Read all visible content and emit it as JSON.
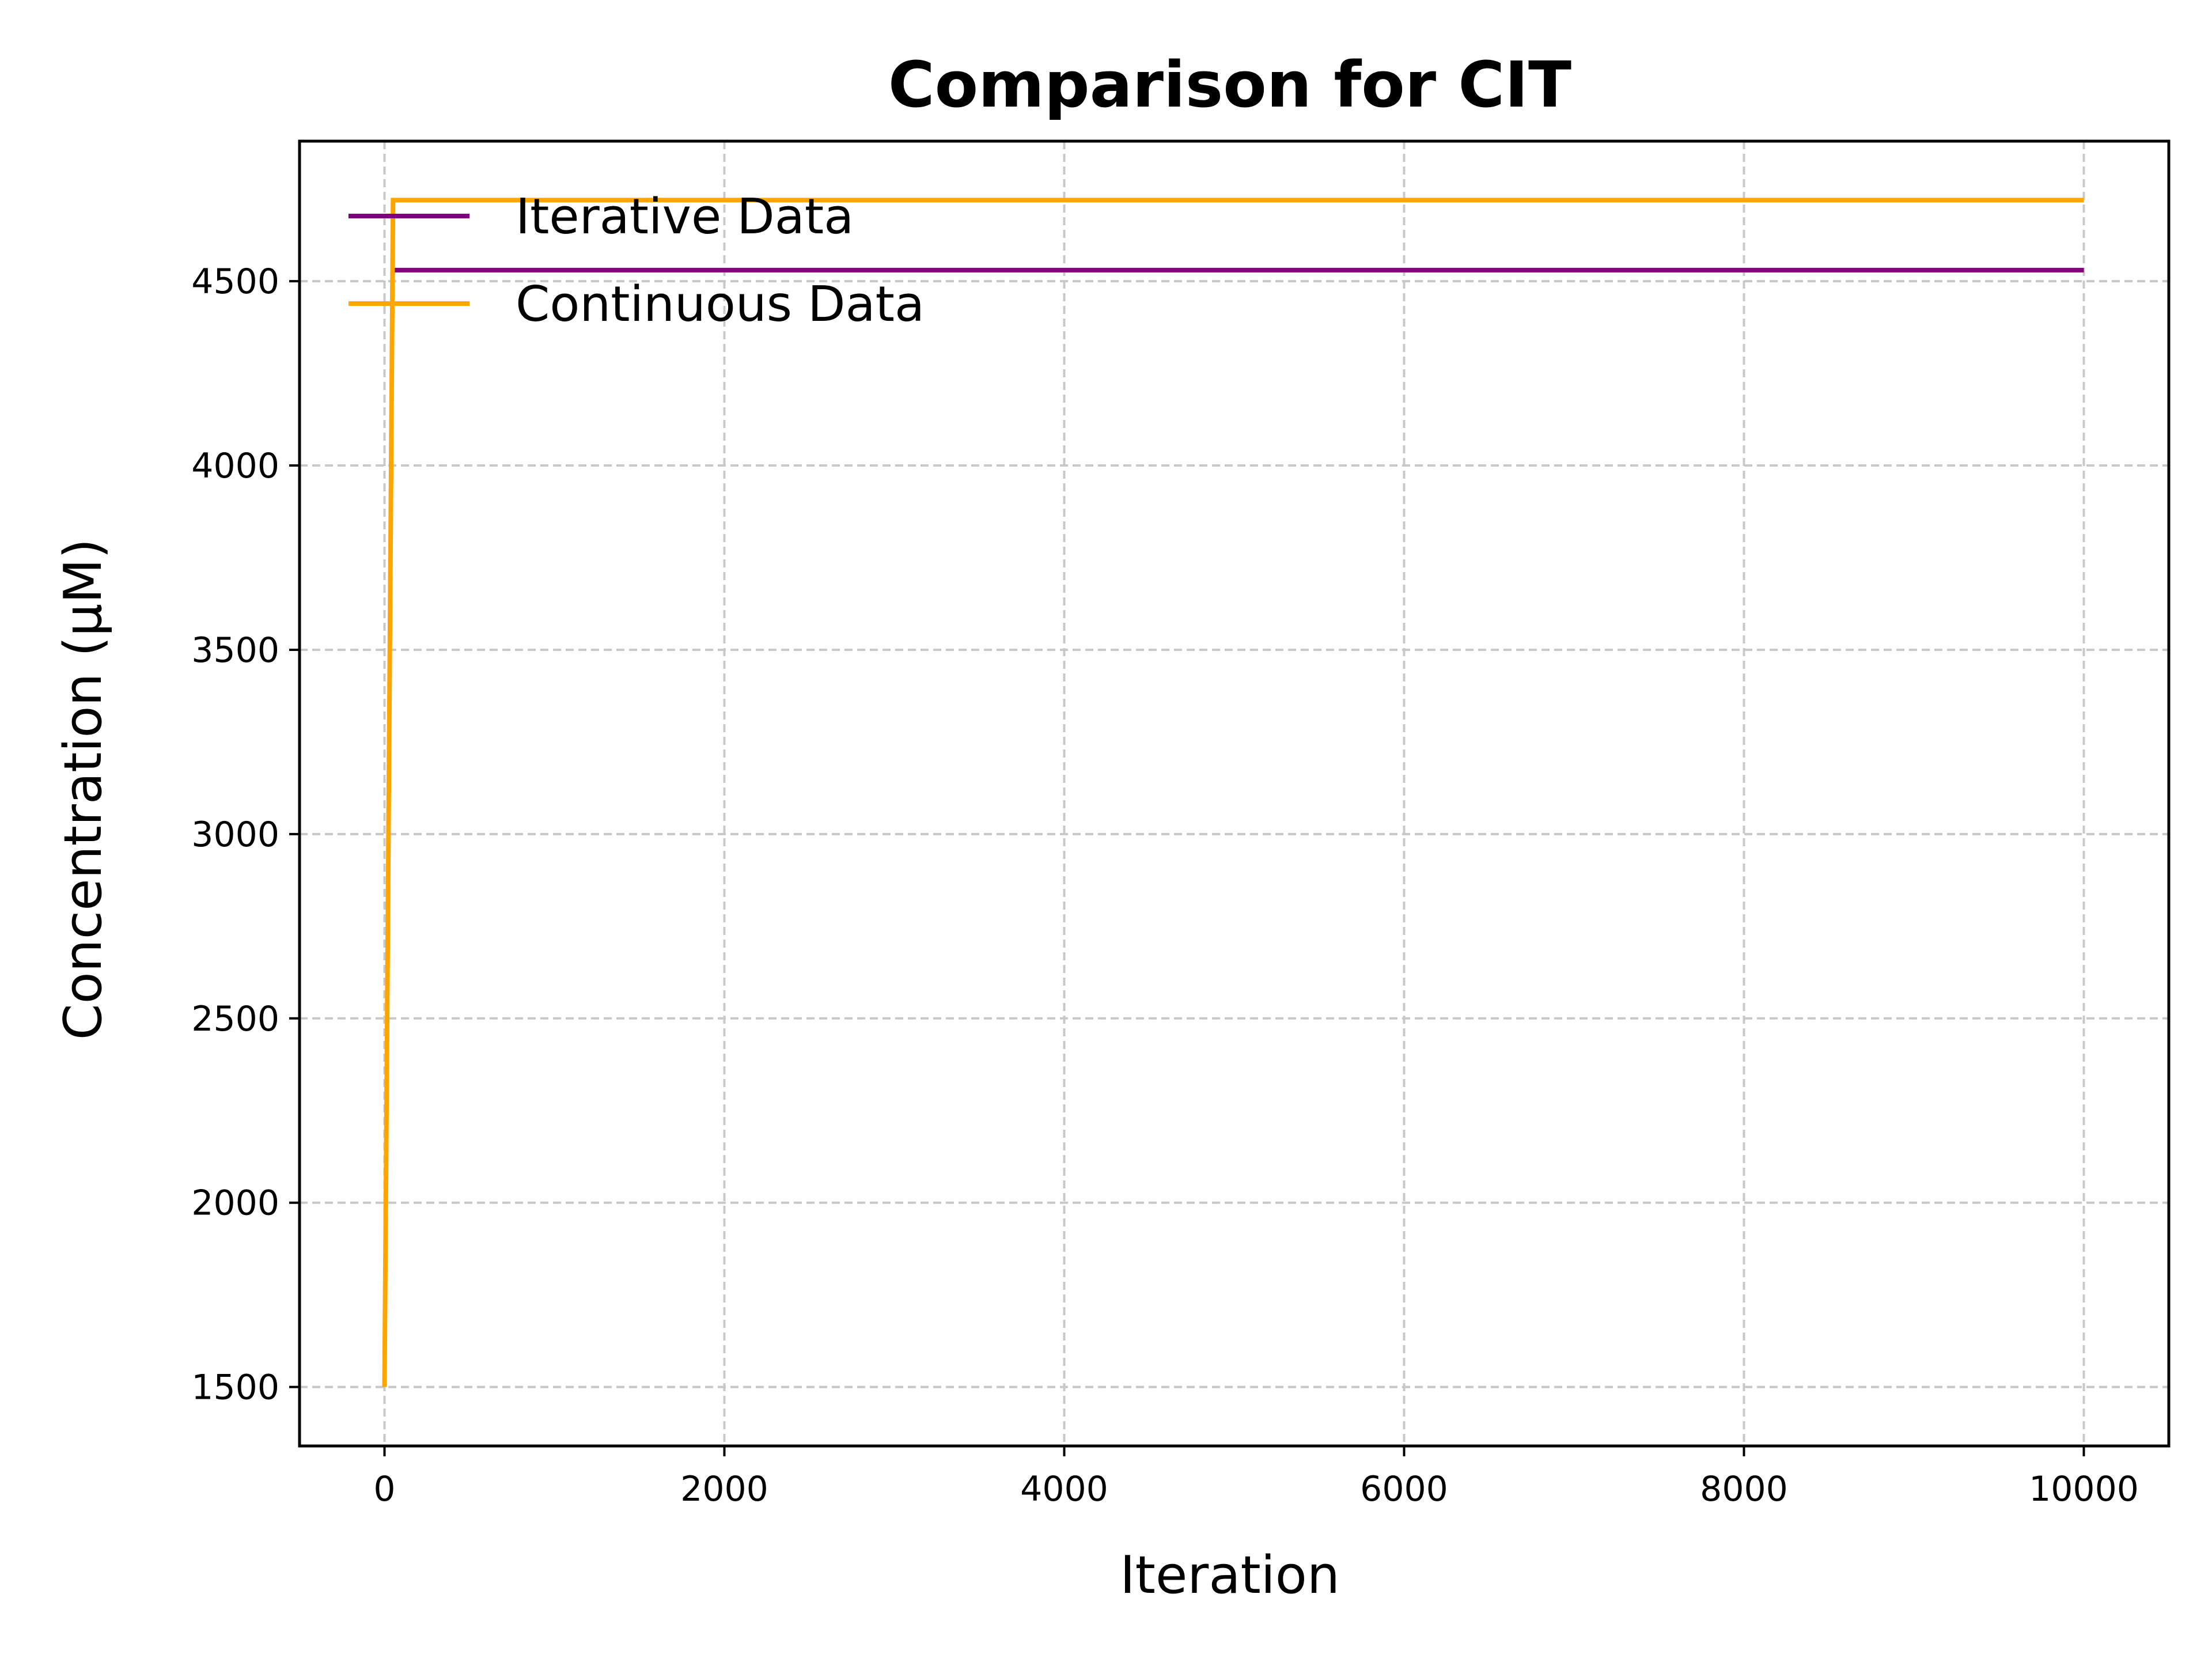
{
  "chart_data": {
    "type": "line",
    "title": "Comparison for CIT",
    "xlabel": "Iteration",
    "ylabel": "Concentration (μM)",
    "xlim": [
      -500,
      10500
    ],
    "ylim": [
      1340,
      4880
    ],
    "xticks": [
      0,
      2000,
      4000,
      6000,
      8000,
      10000
    ],
    "yticks": [
      1500,
      2000,
      2500,
      3000,
      3500,
      4000,
      4500
    ],
    "grid": true,
    "legend_position": "top-left",
    "series": [
      {
        "name": "Iterative Data",
        "color": "#800080",
        "x": [
          50,
          10000
        ],
        "y": [
          4530,
          4530
        ]
      },
      {
        "name": "Continuous Data",
        "color": "#FFA500",
        "x": [
          0,
          50,
          10000
        ],
        "y": [
          1500,
          4720,
          4720
        ]
      }
    ]
  }
}
